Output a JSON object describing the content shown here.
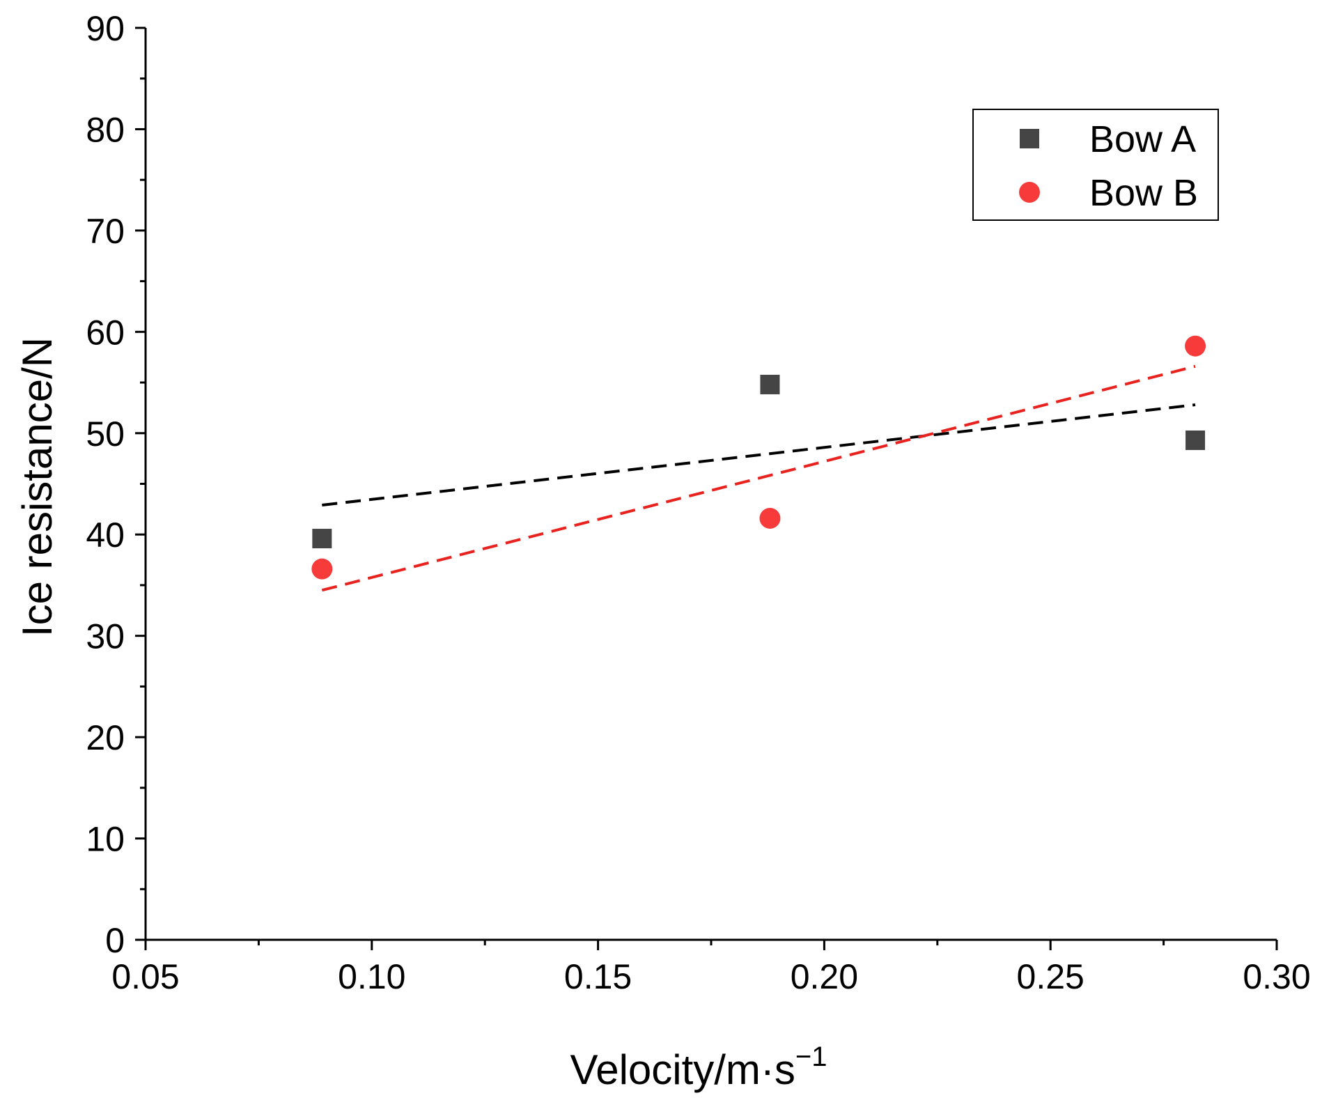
{
  "chart_data": {
    "type": "scatter",
    "title": "",
    "xlabel": "Velocity/m·s",
    "xlabel_superscript": "−1",
    "ylabel": "Ice resistance/N",
    "xlim": [
      0.05,
      0.3
    ],
    "ylim": [
      0,
      90
    ],
    "x_ticks": [
      0.05,
      0.1,
      0.15,
      0.2,
      0.25,
      0.3
    ],
    "x_tick_labels": [
      "0.05",
      "0.10",
      "0.15",
      "0.20",
      "0.25",
      "0.30"
    ],
    "y_ticks": [
      0,
      10,
      20,
      30,
      40,
      50,
      60,
      70,
      80,
      90
    ],
    "y_tick_labels": [
      "0",
      "10",
      "20",
      "30",
      "40",
      "50",
      "60",
      "70",
      "80",
      "90"
    ],
    "grid": false,
    "legend_position": "top-right",
    "series": [
      {
        "name": "Bow A",
        "marker": "square",
        "color": "#454545",
        "x": [
          0.089,
          0.188,
          0.282
        ],
        "y": [
          39.6,
          54.8,
          49.3
        ],
        "trendline": {
          "style": "dashed",
          "color": "#000000",
          "x": [
            0.089,
            0.282
          ],
          "y": [
            42.9,
            52.8
          ]
        }
      },
      {
        "name": "Bow B",
        "marker": "circle",
        "color": "#f73b3b",
        "x": [
          0.089,
          0.188,
          0.282
        ],
        "y": [
          36.6,
          41.6,
          58.6
        ],
        "trendline": {
          "style": "dashed",
          "color": "#e8231f",
          "x": [
            0.089,
            0.282
          ],
          "y": [
            34.5,
            56.6
          ]
        }
      }
    ]
  }
}
